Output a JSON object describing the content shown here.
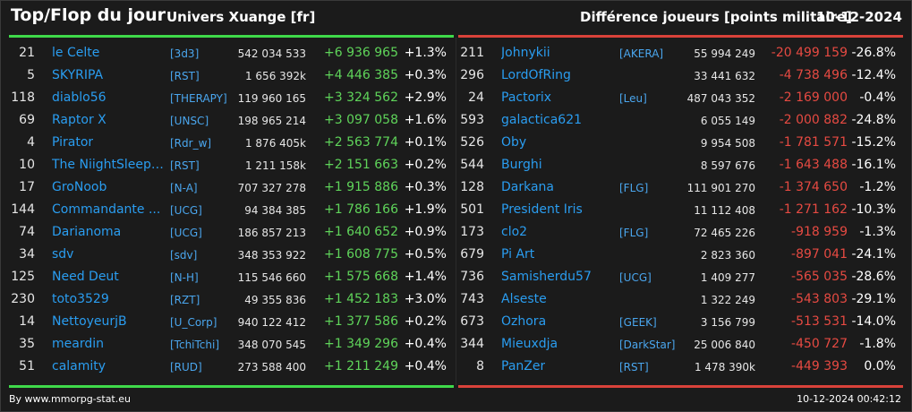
{
  "header": {
    "title": "Top/Flop du jour",
    "universe": "Univers Xuange [fr]",
    "metric": "Différence joueurs [points militaire]",
    "date": "10-12-2024"
  },
  "colors": {
    "top_accent": "#3fd94a",
    "flop_accent": "#d9423a",
    "name_blue": "#2a9df0"
  },
  "top": [
    {
      "rank": "21",
      "name": "le Celte",
      "ally": "[3d3]",
      "points": "542 034 533",
      "diff": "+6 936 965",
      "pct": "+1.3%"
    },
    {
      "rank": "5",
      "name": "SKYRIPA",
      "ally": "[RST]",
      "points": "1 656 392k",
      "diff": "+4 446 385",
      "pct": "+0.3%"
    },
    {
      "rank": "118",
      "name": "diablo56",
      "ally": "[THERAPY]",
      "points": "119 960 165",
      "diff": "+3 324 562",
      "pct": "+2.9%"
    },
    {
      "rank": "69",
      "name": "Raptor X",
      "ally": "[UNSC]",
      "points": "198 965 214",
      "diff": "+3 097 058",
      "pct": "+1.6%"
    },
    {
      "rank": "4",
      "name": "Pirator",
      "ally": "[Rdr_w]",
      "points": "1 876 405k",
      "diff": "+2 563 774",
      "pct": "+0.1%"
    },
    {
      "rank": "10",
      "name": "The NiightSleepe...",
      "ally": "[RST]",
      "points": "1 211 158k",
      "diff": "+2 151 663",
      "pct": "+0.2%"
    },
    {
      "rank": "17",
      "name": "GroNoob",
      "ally": "[N-A]",
      "points": "707 327 278",
      "diff": "+1 915 886",
      "pct": "+0.3%"
    },
    {
      "rank": "144",
      "name": "Commandante ...",
      "ally": "[UCG]",
      "points": "94 384 385",
      "diff": "+1 786 166",
      "pct": "+1.9%"
    },
    {
      "rank": "74",
      "name": "Darianoma",
      "ally": "[UCG]",
      "points": "186 857 213",
      "diff": "+1 640 652",
      "pct": "+0.9%"
    },
    {
      "rank": "34",
      "name": "sdv",
      "ally": "[sdv]",
      "points": "348 353 922",
      "diff": "+1 608 775",
      "pct": "+0.5%"
    },
    {
      "rank": "125",
      "name": "Need Deut",
      "ally": "[N-H]",
      "points": "115 546 660",
      "diff": "+1 575 668",
      "pct": "+1.4%"
    },
    {
      "rank": "230",
      "name": "toto3529",
      "ally": "[RZT]",
      "points": "49 355 836",
      "diff": "+1 452 183",
      "pct": "+3.0%"
    },
    {
      "rank": "14",
      "name": "NettoyeurjB",
      "ally": "[U_Corp]",
      "points": "940 122 412",
      "diff": "+1 377 586",
      "pct": "+0.2%"
    },
    {
      "rank": "35",
      "name": "meardin",
      "ally": "[TchiTchi]",
      "points": "348 070 545",
      "diff": "+1 349 296",
      "pct": "+0.4%"
    },
    {
      "rank": "51",
      "name": "calamity",
      "ally": "[RUD]",
      "points": "273 588 400",
      "diff": "+1 211 249",
      "pct": "+0.4%"
    }
  ],
  "flop": [
    {
      "rank": "211",
      "name": "Johnykii",
      "ally": "[AKERA]",
      "points": "55 994 249",
      "diff": "-20 499 159",
      "pct": "-26.8%"
    },
    {
      "rank": "296",
      "name": "LordOfRing",
      "ally": "",
      "points": "33 441 632",
      "diff": "-4 738 496",
      "pct": "-12.4%"
    },
    {
      "rank": "24",
      "name": "Pactorix",
      "ally": "[Leu]",
      "points": "487 043 352",
      "diff": "-2 169 000",
      "pct": "-0.4%"
    },
    {
      "rank": "593",
      "name": "galactica621",
      "ally": "",
      "points": "6 055 149",
      "diff": "-2 000 882",
      "pct": "-24.8%"
    },
    {
      "rank": "526",
      "name": "Oby",
      "ally": "",
      "points": "9 954 508",
      "diff": "-1 781 571",
      "pct": "-15.2%"
    },
    {
      "rank": "544",
      "name": "Burghi",
      "ally": "",
      "points": "8 597 676",
      "diff": "-1 643 488",
      "pct": "-16.1%"
    },
    {
      "rank": "128",
      "name": "Darkana",
      "ally": "[FLG]",
      "points": "111 901 270",
      "diff": "-1 374 650",
      "pct": "-1.2%"
    },
    {
      "rank": "501",
      "name": "President Iris",
      "ally": "",
      "points": "11 112 408",
      "diff": "-1 271 162",
      "pct": "-10.3%"
    },
    {
      "rank": "173",
      "name": "clo2",
      "ally": "[FLG]",
      "points": "72 465 226",
      "diff": "-918 959",
      "pct": "-1.3%"
    },
    {
      "rank": "679",
      "name": "Pi Art",
      "ally": "",
      "points": "2 823 360",
      "diff": "-897 041",
      "pct": "-24.1%"
    },
    {
      "rank": "736",
      "name": "Samisherdu57",
      "ally": "[UCG]",
      "points": "1 409 277",
      "diff": "-565 035",
      "pct": "-28.6%"
    },
    {
      "rank": "743",
      "name": "Alseste",
      "ally": "",
      "points": "1 322 249",
      "diff": "-543 803",
      "pct": "-29.1%"
    },
    {
      "rank": "673",
      "name": "Ozhora",
      "ally": "[GEEK]",
      "points": "3 156 799",
      "diff": "-513 531",
      "pct": "-14.0%"
    },
    {
      "rank": "344",
      "name": "Mieuxdja",
      "ally": "[DarkStar]",
      "points": "25 006 840",
      "diff": "-450 727",
      "pct": "-1.8%"
    },
    {
      "rank": "8",
      "name": "PanZer",
      "ally": "[RST]",
      "points": "1 478 390k",
      "diff": "-449 393",
      "pct": "0.0%"
    }
  ],
  "footer": {
    "credit": "By www.mmorpg-stat.eu",
    "timestamp": "10-12-2024 00:42:12"
  }
}
